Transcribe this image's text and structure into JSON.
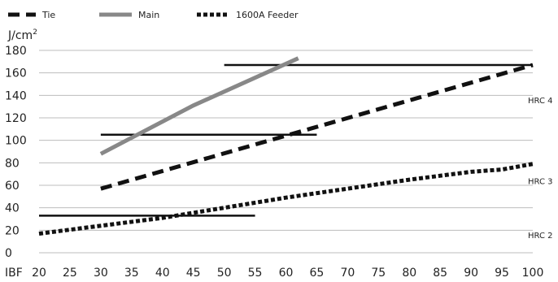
{
  "chart_data": {
    "type": "line",
    "ylabel": "J/cm",
    "ylabel_superscript": "2",
    "xlabel": "IBF",
    "x": [
      20,
      25,
      30,
      35,
      40,
      45,
      50,
      55,
      60,
      65,
      70,
      75,
      80,
      85,
      90,
      95,
      100
    ],
    "x_tick_labels": [
      "20",
      "25",
      "30",
      "35",
      "40",
      "45",
      "50",
      "55",
      "60",
      "65",
      "70",
      "75",
      "80",
      "85",
      "90",
      "95",
      "100"
    ],
    "y_ticks": [
      0,
      20,
      40,
      60,
      80,
      100,
      120,
      140,
      160,
      180
    ],
    "y_tick_labels": [
      "0",
      "20",
      "40",
      "60",
      "80",
      "100",
      "120",
      "140",
      "160",
      "180"
    ],
    "xlim": [
      20,
      100
    ],
    "ylim": [
      0,
      180
    ],
    "grid": "horizontal",
    "legend_position": "top-left",
    "series": [
      {
        "name": "Tie",
        "style": "dashed",
        "color": "#111111",
        "points": [
          [
            30,
            57
          ],
          [
            100,
            167
          ]
        ]
      },
      {
        "name": "Main",
        "style": "solid",
        "color": "#888888",
        "points": [
          [
            30,
            88
          ],
          [
            45,
            131
          ],
          [
            62,
            173
          ]
        ]
      },
      {
        "name": "1600A Feeder",
        "style": "dotted",
        "color": "#111111",
        "points": [
          [
            20,
            17
          ],
          [
            40,
            31
          ],
          [
            60,
            49
          ],
          [
            80,
            65
          ],
          [
            90,
            72
          ],
          [
            95,
            74
          ],
          [
            100,
            79
          ]
        ]
      }
    ],
    "hrc_regions": [
      {
        "label": "HRC 4",
        "y": 136
      },
      {
        "label": "HRC 3",
        "y": 64
      },
      {
        "label": "HRC 2",
        "y": 16
      }
    ],
    "threshold_bars": [
      {
        "x_start": 20,
        "x_end": 55,
        "y": 33
      },
      {
        "x_start": 30,
        "x_end": 65,
        "y": 105
      },
      {
        "x_start": 50,
        "x_end": 100,
        "y": 167
      }
    ]
  }
}
